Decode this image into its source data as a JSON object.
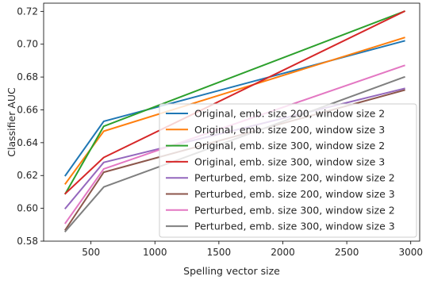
{
  "chart_data": {
    "type": "line",
    "title": "",
    "xlabel": "Spelling vector size",
    "ylabel": "Classifier AUC",
    "xlim": [
      130,
      3070
    ],
    "ylim": [
      0.58,
      0.725
    ],
    "xticks": [
      500,
      1000,
      1500,
      2000,
      2500,
      3000
    ],
    "yticks": [
      0.58,
      0.6,
      0.62,
      0.64,
      0.66,
      0.68,
      0.7,
      0.72
    ],
    "ytick_format": "2dp",
    "grid": false,
    "legend_position": "bottom-right",
    "x": [
      300,
      600,
      2950
    ],
    "series": [
      {
        "name": "Original, emb. size 200, window size 2",
        "color": "#1f77b4",
        "values": [
          0.62,
          0.653,
          0.702
        ]
      },
      {
        "name": "Original, emb. size 200, window size 3",
        "color": "#ff7f0e",
        "values": [
          0.615,
          0.647,
          0.704
        ]
      },
      {
        "name": "Original, emb. size 300, window size 2",
        "color": "#2ca02c",
        "values": [
          0.609,
          0.65,
          0.72
        ]
      },
      {
        "name": "Original, emb. size 300, window size 3",
        "color": "#d62728",
        "values": [
          0.609,
          0.631,
          0.72
        ]
      },
      {
        "name": "Perturbed, emb. size 200, window size 2",
        "color": "#9467bd",
        "values": [
          0.6,
          0.628,
          0.673
        ]
      },
      {
        "name": "Perturbed, emb. size 200, window size 3",
        "color": "#8c564b",
        "values": [
          0.587,
          0.622,
          0.672
        ]
      },
      {
        "name": "Perturbed, emb. size 300, window size 2",
        "color": "#e377c2",
        "values": [
          0.591,
          0.624,
          0.687
        ]
      },
      {
        "name": "Perturbed, emb. size 300, window size 3",
        "color": "#7f7f7f",
        "values": [
          0.586,
          0.613,
          0.68
        ]
      }
    ]
  }
}
